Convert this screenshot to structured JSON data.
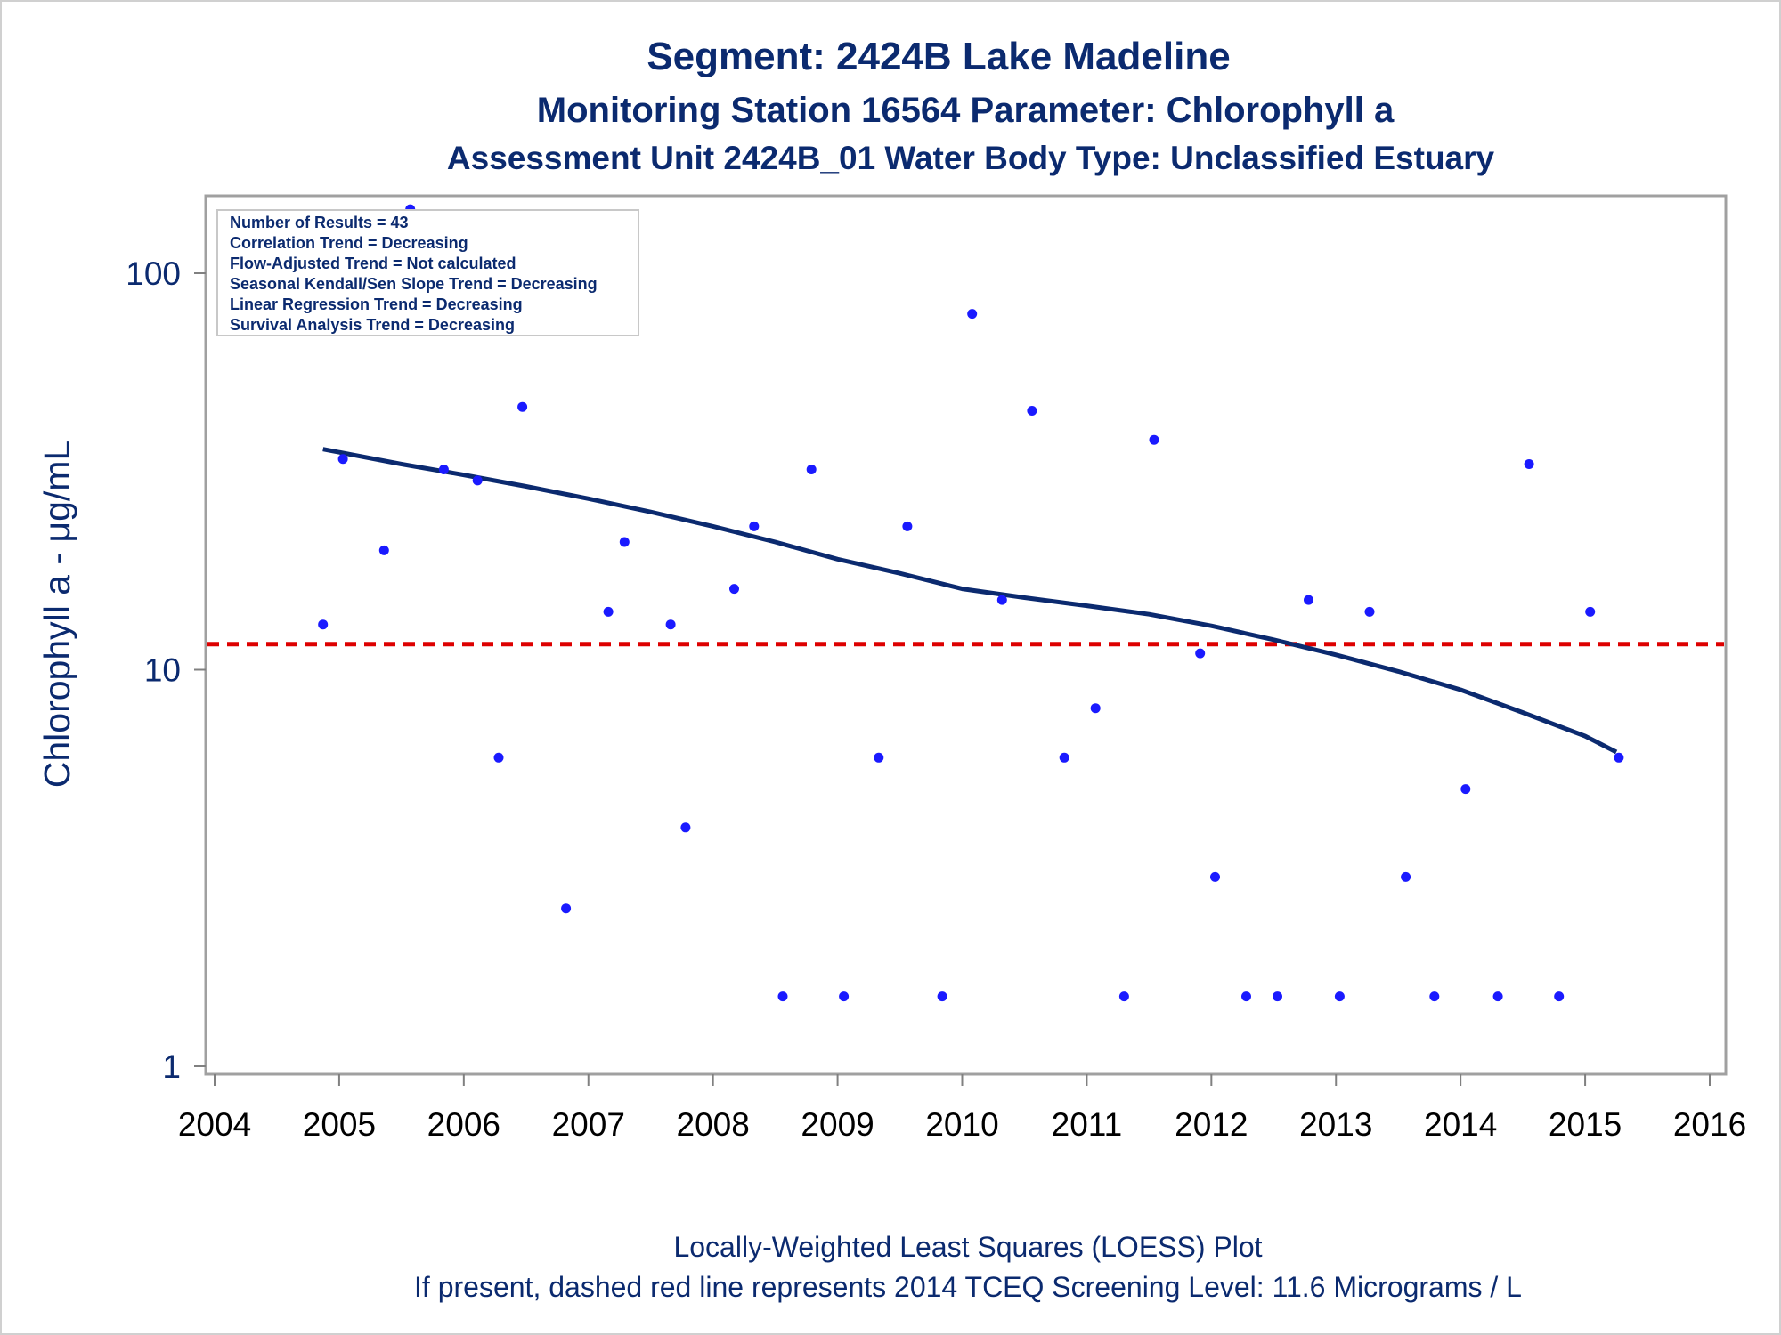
{
  "colors": {
    "text": "#0b2a6f",
    "points": "#1a1aff",
    "loess": "#0b2a6f",
    "screening_line": "#dd0000",
    "frame": "#a0a0a0"
  },
  "chart_data": {
    "type": "scatter",
    "title": "Segment: 2424B  Lake Madeline",
    "subtitle": "Monitoring Station 16564 Parameter: Chlorophyll a",
    "subtitle2": "Assessment Unit 2424B_01   Water Body Type: Unclassified Estuary",
    "xlabel": "",
    "ylabel": "Chlorophyll a -  μg/mL",
    "yscale": "log",
    "xlim": [
      2004,
      2016
    ],
    "ylim": [
      1,
      160
    ],
    "x_ticks": [
      "2004",
      "2005",
      "2006",
      "2007",
      "2008",
      "2009",
      "2010",
      "2011",
      "2012",
      "2013",
      "2014",
      "2015",
      "2016"
    ],
    "y_ticks": [
      "1",
      "10",
      "100"
    ],
    "grid": false,
    "stats_box": [
      "Number of Results = 43",
      "Correlation Trend = Decreasing",
      "Flow-Adjusted Trend = Not calculated",
      "Seasonal Kendall/Sen Slope Trend = Decreasing",
      "Linear Regression Trend = Decreasing",
      "Survival Analysis Trend = Decreasing"
    ],
    "stats_box_placement": "top-left",
    "series": [
      {
        "type": "scatter",
        "x": [
          2004.87,
          2005.03,
          2005.36,
          2005.57,
          2005.84,
          2006.11,
          2006.28,
          2006.47,
          2006.82,
          2007.16,
          2007.29,
          2007.66,
          2007.78,
          2008.17,
          2008.33,
          2008.56,
          2008.79,
          2009.05,
          2009.33,
          2009.56,
          2009.84,
          2010.08,
          2010.32,
          2010.56,
          2010.82,
          2011.07,
          2011.3,
          2011.54,
          2011.91,
          2012.03,
          2012.28,
          2012.53,
          2012.78,
          2013.03,
          2013.27,
          2013.56,
          2013.79,
          2014.04,
          2014.3,
          2014.55,
          2014.79,
          2015.04,
          2015.27
        ],
        "y": [
          13,
          34,
          20,
          145,
          32,
          30,
          6,
          46,
          2.5,
          14,
          21,
          13,
          4,
          16,
          23,
          1.5,
          32,
          1.5,
          6,
          23,
          1.5,
          79,
          15,
          45,
          6,
          8,
          1.5,
          38,
          11,
          3,
          1.5,
          1.5,
          15,
          1.5,
          14,
          3,
          1.5,
          5,
          1.5,
          33,
          1.5,
          14,
          6
        ]
      },
      {
        "type": "line",
        "name": "LOESS",
        "x": [
          2004.87,
          2005.5,
          2006.0,
          2006.5,
          2007.0,
          2007.5,
          2008.0,
          2008.5,
          2009.0,
          2009.5,
          2010.0,
          2010.5,
          2011.0,
          2011.5,
          2012.0,
          2012.5,
          2013.0,
          2013.5,
          2014.0,
          2014.5,
          2015.0,
          2015.25
        ],
        "y": [
          36,
          33,
          31,
          29,
          27,
          25,
          23,
          21,
          19,
          17.5,
          16,
          15.2,
          14.5,
          13.8,
          12.9,
          11.9,
          10.9,
          9.9,
          8.9,
          7.8,
          6.8,
          6.2
        ]
      },
      {
        "type": "hline",
        "name": "2014 TCEQ Screening Level",
        "y": 11.6
      }
    ],
    "footnotes": [
      "Locally-Weighted Least Squares (LOESS) Plot",
      "If present, dashed red line represents 2014 TCEQ Screening Level: 11.6 Micrograms / L"
    ]
  }
}
